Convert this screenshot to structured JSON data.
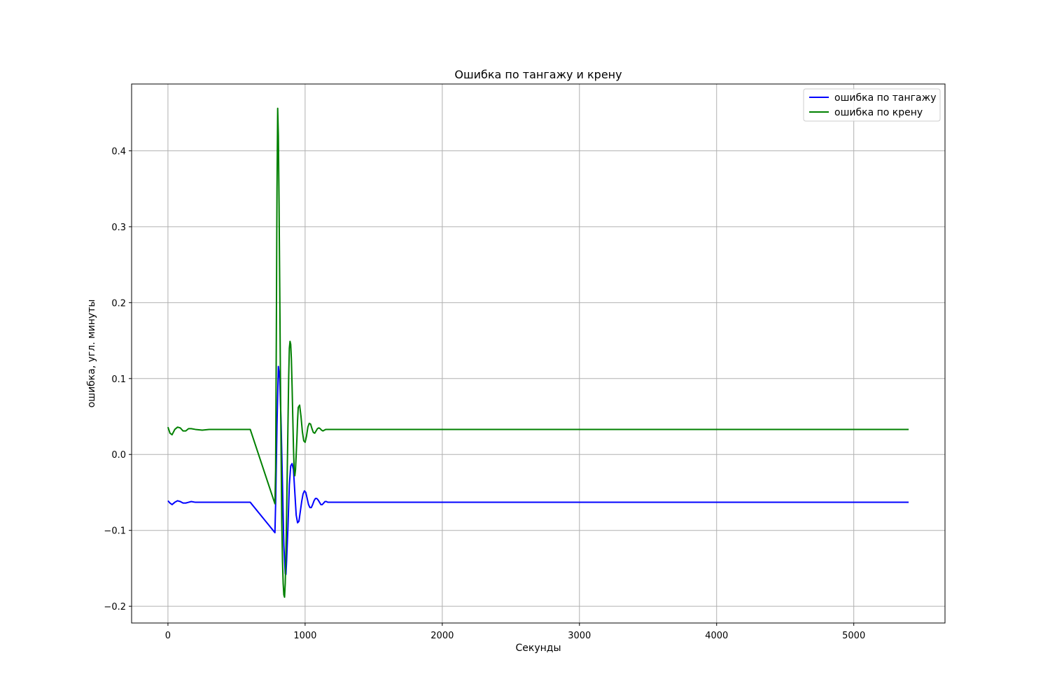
{
  "chart_data": {
    "type": "line",
    "title": "Ошибка по тангажу и крену",
    "xlabel": "Секунды",
    "ylabel": "ошибка, угл. минуты",
    "xlim": [
      -265,
      5665
    ],
    "ylim": [
      -0.222,
      0.488
    ],
    "xticks": [
      0,
      1000,
      2000,
      3000,
      4000,
      5000
    ],
    "xtick_labels": [
      "0",
      "1000",
      "2000",
      "3000",
      "4000",
      "5000"
    ],
    "yticks": [
      -0.2,
      -0.1,
      0.0,
      0.1,
      0.2,
      0.3,
      0.4
    ],
    "ytick_labels": [
      "−0.2",
      "−0.1",
      "0.0",
      "0.1",
      "0.2",
      "0.3",
      "0.4"
    ],
    "grid": true,
    "legend_position": "upper right",
    "series": [
      {
        "name": "ошибка по тангажу",
        "color": "#0000ff",
        "x": [
          0,
          15,
          30,
          50,
          70,
          90,
          110,
          130,
          150,
          170,
          200,
          250,
          300,
          400,
          500,
          600,
          780,
          785,
          795,
          805,
          815,
          825,
          835,
          845,
          855,
          860,
          865,
          875,
          885,
          895,
          905,
          915,
          925,
          935,
          945,
          955,
          965,
          975,
          985,
          995,
          1005,
          1015,
          1025,
          1035,
          1045,
          1055,
          1065,
          1075,
          1085,
          1095,
          1105,
          1115,
          1125,
          1135,
          1145,
          1155,
          1165,
          1175,
          1185,
          1200,
          1215,
          1230,
          1250,
          1270,
          1290,
          1310,
          1330,
          1350,
          1400,
          1500,
          2000,
          3000,
          4000,
          5000,
          5400
        ],
        "y": [
          -0.061,
          -0.064,
          -0.066,
          -0.063,
          -0.061,
          -0.062,
          -0.064,
          -0.064,
          -0.063,
          -0.062,
          -0.063,
          -0.063,
          -0.063,
          -0.063,
          -0.063,
          -0.063,
          -0.103,
          -0.065,
          0.04,
          0.116,
          0.1,
          0.04,
          -0.04,
          -0.12,
          -0.157,
          -0.158,
          -0.14,
          -0.095,
          -0.04,
          -0.015,
          -0.012,
          -0.02,
          -0.05,
          -0.08,
          -0.09,
          -0.088,
          -0.075,
          -0.062,
          -0.052,
          -0.048,
          -0.05,
          -0.058,
          -0.066,
          -0.07,
          -0.07,
          -0.066,
          -0.061,
          -0.058,
          -0.058,
          -0.06,
          -0.063,
          -0.066,
          -0.066,
          -0.064,
          -0.062,
          -0.062,
          -0.063,
          -0.063,
          -0.063,
          -0.063,
          -0.063,
          -0.063,
          -0.063,
          -0.063,
          -0.063,
          -0.063,
          -0.063,
          -0.063,
          -0.063,
          -0.063,
          -0.063,
          -0.063,
          -0.063,
          -0.063,
          -0.063
        ]
      },
      {
        "name": "ошибка по крену",
        "color": "#008000",
        "x": [
          0,
          15,
          30,
          50,
          70,
          90,
          110,
          130,
          150,
          170,
          200,
          250,
          300,
          400,
          500,
          600,
          780,
          785,
          790,
          795,
          800,
          805,
          810,
          815,
          820,
          825,
          830,
          835,
          840,
          845,
          850,
          855,
          860,
          865,
          870,
          875,
          880,
          885,
          890,
          895,
          900,
          905,
          910,
          915,
          920,
          925,
          930,
          935,
          940,
          945,
          950,
          960,
          970,
          980,
          990,
          1000,
          1010,
          1020,
          1030,
          1040,
          1050,
          1060,
          1070,
          1080,
          1090,
          1100,
          1110,
          1120,
          1130,
          1140,
          1150,
          1160,
          1170,
          1180,
          1190,
          1200,
          1220,
          1240,
          1260,
          1280,
          1300,
          1330,
          1360,
          1400,
          1500,
          2000,
          3000,
          4000,
          5000,
          5400
        ],
        "y": [
          0.036,
          0.028,
          0.026,
          0.033,
          0.036,
          0.035,
          0.031,
          0.031,
          0.034,
          0.034,
          0.033,
          0.032,
          0.033,
          0.033,
          0.033,
          0.033,
          -0.065,
          -0.02,
          0.15,
          0.35,
          0.456,
          0.42,
          0.33,
          0.22,
          0.1,
          0.0,
          -0.09,
          -0.14,
          -0.17,
          -0.185,
          -0.188,
          -0.17,
          -0.13,
          -0.08,
          -0.02,
          0.04,
          0.1,
          0.14,
          0.149,
          0.145,
          0.125,
          0.09,
          0.05,
          0.01,
          -0.02,
          -0.028,
          -0.02,
          0.0,
          0.02,
          0.045,
          0.062,
          0.065,
          0.05,
          0.03,
          0.018,
          0.016,
          0.024,
          0.036,
          0.041,
          0.04,
          0.034,
          0.029,
          0.028,
          0.031,
          0.034,
          0.035,
          0.034,
          0.032,
          0.031,
          0.032,
          0.033,
          0.033,
          0.033,
          0.033,
          0.033,
          0.033,
          0.033,
          0.033,
          0.033,
          0.033,
          0.033,
          0.033,
          0.033,
          0.033,
          0.033,
          0.033,
          0.033,
          0.033,
          0.033,
          0.033
        ]
      }
    ]
  }
}
